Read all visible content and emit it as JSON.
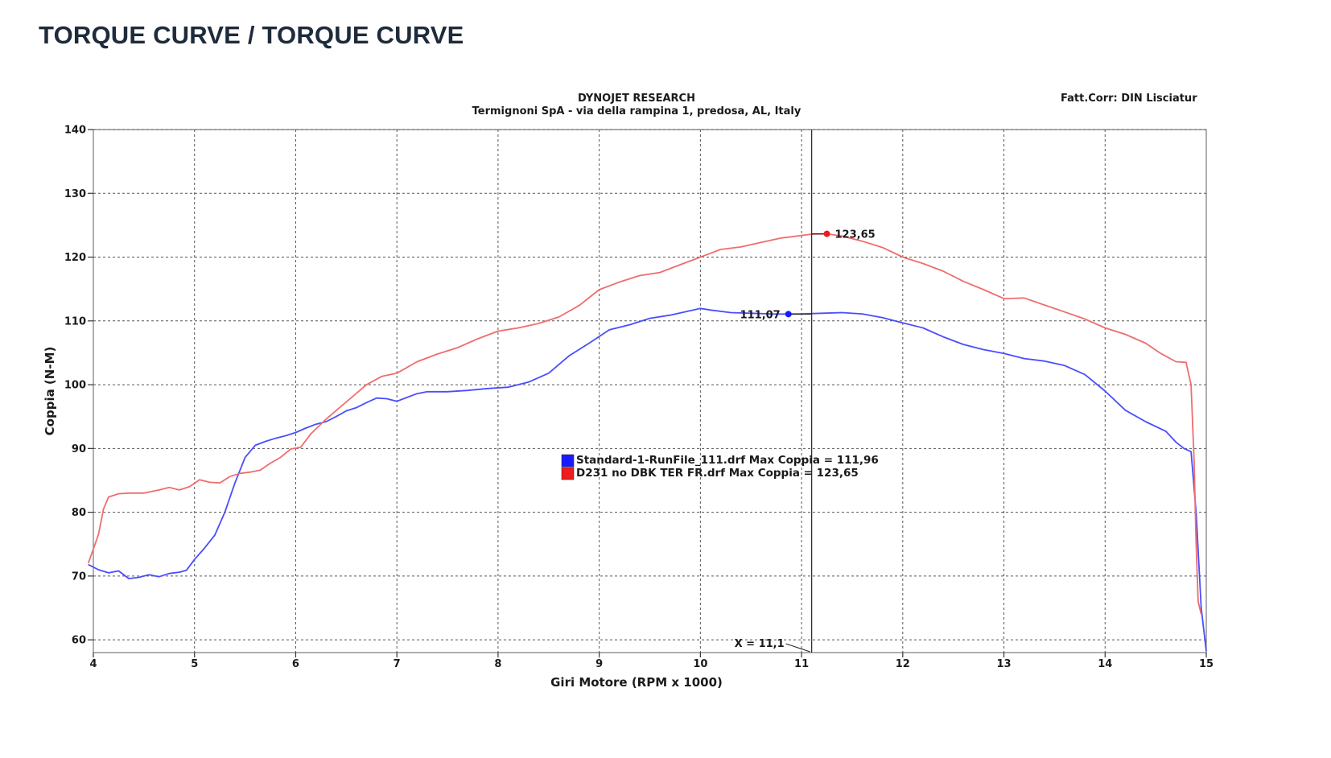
{
  "page": {
    "title": "TORQUE CURVE / TORQUE CURVE"
  },
  "chart_data": {
    "type": "line",
    "header": {
      "title": "DYNOJET RESEARCH",
      "subtitle": "Termignoni SpA - via della rampina 1, predosa, AL,  Italy",
      "corner": "Fatt.Corr: DIN  Lisciatur"
    },
    "xlabel": "Giri Motore (RPM x 1000)",
    "ylabel": "Coppia (N-M)",
    "xlim": [
      4,
      15
    ],
    "ylim": [
      58,
      140
    ],
    "xticks": [
      4,
      5,
      6,
      7,
      8,
      9,
      10,
      11,
      12,
      13,
      14,
      15
    ],
    "yticks": [
      60,
      70,
      80,
      90,
      100,
      110,
      120,
      130,
      140
    ],
    "grid": true,
    "cursor": {
      "x": 11.1,
      "label": "X = 11,1"
    },
    "colors": {
      "blue": "#4a4dff",
      "red": "#ef6d6d",
      "blue_marker": "#1a1aff",
      "red_marker": "#ee1c1c"
    },
    "series": [
      {
        "name": "Standard-1-RunFile_111.drf Max Coppia = 111,96",
        "color": "#4a4dff",
        "marker": {
          "x": 10.87,
          "y": 111.07,
          "label": "111,07"
        },
        "x": [
          3.95,
          4.05,
          4.15,
          4.25,
          4.35,
          4.45,
          4.55,
          4.65,
          4.75,
          4.85,
          4.92,
          5.0,
          5.1,
          5.2,
          5.3,
          5.4,
          5.5,
          5.6,
          5.7,
          5.8,
          5.9,
          6.0,
          6.1,
          6.2,
          6.3,
          6.4,
          6.5,
          6.6,
          6.7,
          6.8,
          6.9,
          7.0,
          7.1,
          7.2,
          7.3,
          7.5,
          7.7,
          7.9,
          8.1,
          8.3,
          8.5,
          8.7,
          8.9,
          9.1,
          9.3,
          9.5,
          9.7,
          9.9,
          10.0,
          10.1,
          10.3,
          10.5,
          10.7,
          10.87,
          11.0,
          11.2,
          11.4,
          11.6,
          11.8,
          12.0,
          12.2,
          12.4,
          12.6,
          12.8,
          13.0,
          13.2,
          13.4,
          13.6,
          13.8,
          14.0,
          14.2,
          14.4,
          14.6,
          14.7,
          14.78,
          14.85,
          14.9,
          14.95,
          15.0
        ],
        "y": [
          71.8,
          71.0,
          70.5,
          70.8,
          69.6,
          69.8,
          70.2,
          69.9,
          70.4,
          70.6,
          70.9,
          72.6,
          74.4,
          76.4,
          80.0,
          84.6,
          88.6,
          90.5,
          91.1,
          91.6,
          92.0,
          92.5,
          93.2,
          93.8,
          94.2,
          95.0,
          95.9,
          96.4,
          97.2,
          97.9,
          97.8,
          97.4,
          98.0,
          98.6,
          98.9,
          98.9,
          99.1,
          99.4,
          99.6,
          100.4,
          101.8,
          104.5,
          106.5,
          108.6,
          109.4,
          110.4,
          110.9,
          111.6,
          111.96,
          111.7,
          111.3,
          111.2,
          111.1,
          111.07,
          111.1,
          111.2,
          111.3,
          111.1,
          110.5,
          109.7,
          108.9,
          107.5,
          106.3,
          105.5,
          104.9,
          104.1,
          103.7,
          103.0,
          101.6,
          99.0,
          96.0,
          94.2,
          92.7,
          91.0,
          90.0,
          89.5,
          80.0,
          65.0,
          58.2
        ]
      },
      {
        "name": "D231 no DBK TER FR.drf Max Coppia = 123,65",
        "color": "#ef6d6d",
        "marker": {
          "x": 11.25,
          "y": 123.65,
          "label": "123,65"
        },
        "x": [
          3.95,
          4.05,
          4.1,
          4.15,
          4.25,
          4.35,
          4.5,
          4.65,
          4.75,
          4.85,
          4.95,
          5.05,
          5.15,
          5.25,
          5.35,
          5.45,
          5.55,
          5.65,
          5.75,
          5.85,
          5.95,
          6.05,
          6.15,
          6.3,
          6.5,
          6.7,
          6.85,
          7.0,
          7.2,
          7.4,
          7.6,
          7.8,
          8.0,
          8.2,
          8.4,
          8.6,
          8.8,
          9.0,
          9.2,
          9.4,
          9.6,
          9.8,
          10.0,
          10.2,
          10.4,
          10.6,
          10.8,
          11.0,
          11.1,
          11.25,
          11.4,
          11.6,
          11.8,
          12.0,
          12.2,
          12.4,
          12.6,
          12.8,
          13.0,
          13.2,
          13.4,
          13.6,
          13.8,
          14.0,
          14.2,
          14.4,
          14.55,
          14.7,
          14.8,
          14.85,
          14.88,
          14.9,
          14.92,
          14.95
        ],
        "y": [
          72.0,
          76.5,
          80.5,
          82.4,
          82.9,
          83.0,
          83.0,
          83.5,
          83.9,
          83.5,
          84.0,
          85.1,
          84.7,
          84.6,
          85.6,
          86.1,
          86.3,
          86.6,
          87.7,
          88.6,
          89.9,
          90.2,
          92.3,
          94.6,
          97.3,
          100.0,
          101.3,
          101.8,
          103.6,
          104.8,
          105.8,
          107.2,
          108.4,
          108.9,
          109.6,
          110.6,
          112.4,
          114.9,
          116.1,
          117.1,
          117.6,
          118.8,
          120.0,
          121.2,
          121.6,
          122.3,
          123.0,
          123.4,
          123.6,
          123.65,
          123.3,
          122.5,
          121.5,
          120.0,
          119.0,
          117.8,
          116.2,
          114.9,
          113.5,
          113.6,
          112.5,
          111.4,
          110.3,
          108.9,
          107.9,
          106.5,
          104.9,
          103.6,
          103.5,
          100.0,
          88.0,
          75.0,
          66.0,
          64.0
        ]
      }
    ]
  }
}
